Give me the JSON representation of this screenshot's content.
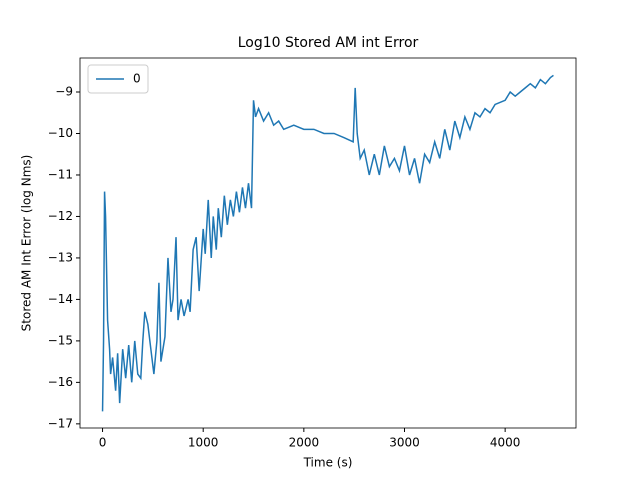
{
  "chart_data": {
    "type": "line",
    "title": "Log10 Stored AM int Error",
    "xlabel": "Time (s)",
    "ylabel": "Stored AM Int Error (log Nms)",
    "x": [
      0,
      10,
      20,
      30,
      50,
      70,
      80,
      100,
      130,
      150,
      170,
      200,
      230,
      260,
      290,
      320,
      350,
      380,
      400,
      420,
      450,
      480,
      510,
      540,
      560,
      580,
      620,
      650,
      680,
      700,
      730,
      750,
      780,
      810,
      850,
      870,
      900,
      930,
      960,
      1000,
      1020,
      1050,
      1080,
      1100,
      1130,
      1150,
      1180,
      1210,
      1240,
      1270,
      1300,
      1330,
      1360,
      1390,
      1420,
      1450,
      1480,
      1500,
      1520,
      1550,
      1600,
      1650,
      1700,
      1750,
      1800,
      1900,
      2000,
      2100,
      2200,
      2300,
      2400,
      2490,
      2510,
      2530,
      2560,
      2600,
      2650,
      2700,
      2750,
      2800,
      2850,
      2900,
      2950,
      3000,
      3050,
      3100,
      3150,
      3200,
      3250,
      3300,
      3350,
      3400,
      3450,
      3500,
      3550,
      3600,
      3650,
      3700,
      3750,
      3800,
      3850,
      3900,
      4000,
      4050,
      4100,
      4150,
      4200,
      4250,
      4300,
      4350,
      4400,
      4450,
      4480
    ],
    "series": [
      {
        "name": "0",
        "color": "#1f77b4",
        "values": [
          -16.7,
          -15.0,
          -11.4,
          -12.0,
          -14.5,
          -15.2,
          -15.8,
          -15.4,
          -16.2,
          -15.3,
          -16.5,
          -15.2,
          -15.9,
          -15.1,
          -16.0,
          -15.0,
          -15.8,
          -15.9,
          -15.0,
          -14.3,
          -14.6,
          -15.2,
          -15.8,
          -15.0,
          -13.6,
          -15.5,
          -14.9,
          -13.0,
          -14.3,
          -14.0,
          -12.5,
          -14.5,
          -14.0,
          -14.4,
          -14.0,
          -14.3,
          -12.8,
          -12.5,
          -13.8,
          -12.3,
          -12.9,
          -11.6,
          -13.0,
          -12.0,
          -12.8,
          -11.8,
          -12.5,
          -11.5,
          -12.2,
          -11.6,
          -12.0,
          -11.4,
          -11.9,
          -11.3,
          -11.8,
          -11.2,
          -11.8,
          -9.2,
          -9.6,
          -9.4,
          -9.7,
          -9.5,
          -9.8,
          -9.7,
          -9.9,
          -9.8,
          -9.9,
          -9.9,
          -10.0,
          -10.0,
          -10.1,
          -10.2,
          -8.9,
          -10.0,
          -10.6,
          -10.4,
          -11.0,
          -10.5,
          -11.0,
          -10.3,
          -10.8,
          -10.6,
          -10.9,
          -10.3,
          -11.0,
          -10.6,
          -11.2,
          -10.5,
          -10.7,
          -10.2,
          -10.6,
          -9.9,
          -10.4,
          -9.7,
          -10.1,
          -9.6,
          -9.9,
          -9.5,
          -9.6,
          -9.4,
          -9.5,
          -9.3,
          -9.2,
          -9.0,
          -9.1,
          -9.0,
          -8.9,
          -8.8,
          -8.9,
          -8.7,
          -8.8,
          -8.65,
          -8.6
        ]
      }
    ],
    "xlim": [
      -224,
      4704
    ],
    "ylim": [
      -17.1,
      -8.18
    ],
    "xticks": [
      0,
      1000,
      2000,
      3000,
      4000
    ],
    "yticks": [
      {
        "value": -17,
        "label": "−17"
      },
      {
        "value": -16,
        "label": "−16"
      },
      {
        "value": -15,
        "label": "−15"
      },
      {
        "value": -14,
        "label": "−14"
      },
      {
        "value": -13,
        "label": "−13"
      },
      {
        "value": -12,
        "label": "−12"
      },
      {
        "value": -11,
        "label": "−11"
      },
      {
        "value": -10,
        "label": "−10"
      },
      {
        "value": -9,
        "label": "−9"
      }
    ],
    "legend": "upper left"
  }
}
